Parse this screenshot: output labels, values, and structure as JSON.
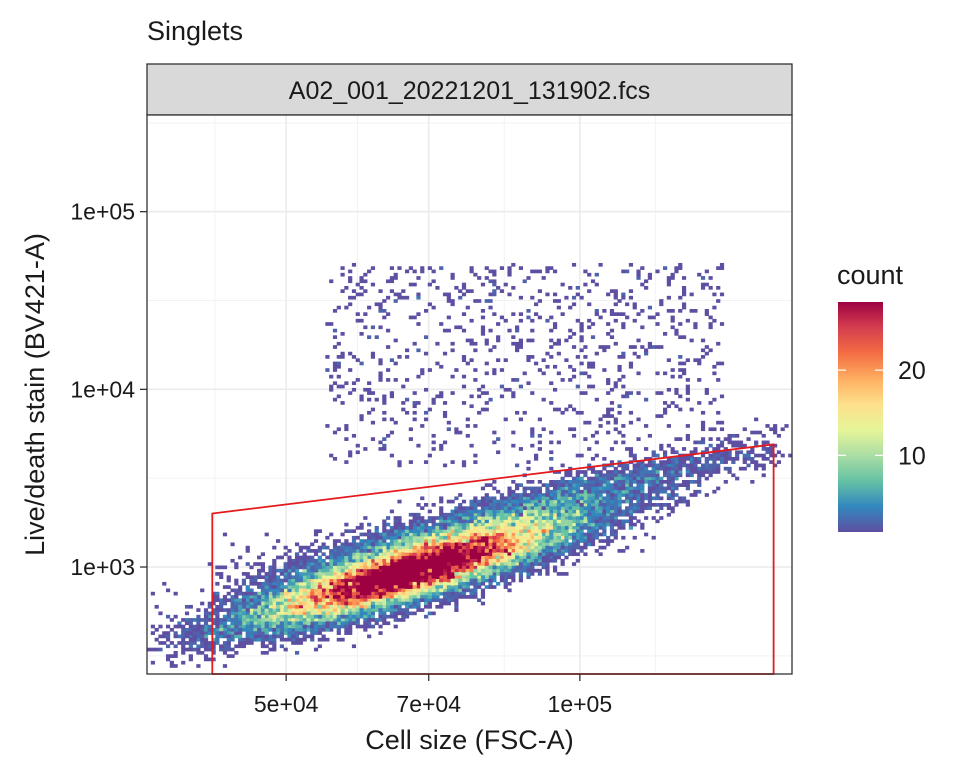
{
  "chart_data": {
    "type": "heatmap",
    "title": "Singlets",
    "facet_label": "A02_001_20221201_131902.fcs",
    "xlabel": "Cell size (FSC-A)",
    "ylabel": "Live/death stain (BV421-A)",
    "x_ticks": [
      "5e+04",
      "7e+04",
      "1e+05"
    ],
    "x_tick_values": [
      50000,
      70000,
      100000
    ],
    "y_ticks": [
      "1e+05",
      "1e+04",
      "1e+03"
    ],
    "y_tick_values": [
      100000,
      10000,
      1000
    ],
    "x_scale": "log",
    "y_scale": "log",
    "xlim": [
      36000,
      165000
    ],
    "ylim": [
      250,
      350000
    ],
    "grid": true,
    "legend": {
      "title": "count",
      "labels": [
        "20",
        "10"
      ],
      "label_values": [
        20,
        10
      ],
      "range": [
        1,
        28
      ],
      "placement": "right",
      "colors": [
        "#5e4fa2",
        "#3288bd",
        "#66c2a5",
        "#abdda4",
        "#e6f598",
        "#fee08b",
        "#fdae61",
        "#f46d43",
        "#d53e4f",
        "#9e0142"
      ]
    },
    "population": {
      "dense_center": [
        67000,
        950
      ],
      "log_slope": 1.55,
      "dense_spread_log_x": 0.085,
      "dense_spread_log_y": 0.085,
      "dead_cloud_x_range": [
        55000,
        140000
      ],
      "dead_cloud_y_range": [
        3500,
        50000
      ]
    },
    "gate": {
      "color": "#e41a1c",
      "vertices": [
        [
          42000,
          250
        ],
        [
          42000,
          2000
        ],
        [
          158000,
          4900
        ],
        [
          158000,
          250
        ]
      ]
    }
  }
}
